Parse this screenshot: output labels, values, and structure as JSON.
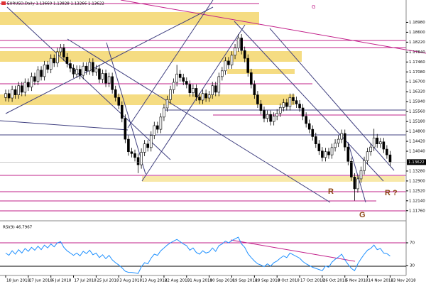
{
  "chart_data": {
    "type": "candlestick",
    "title": "EURUSD,Daily  1.13660 1.13828 1.13266 1.13622",
    "categories": [
      "18 Jun 2018",
      null,
      null,
      null,
      null,
      null,
      null,
      "27 Jun 2018",
      null,
      null,
      null,
      null,
      null,
      null,
      "6 Jul 2018",
      null,
      null,
      null,
      null,
      null,
      null,
      "17 Jul 2018",
      null,
      null,
      null,
      null,
      null,
      null,
      "25 Jul 2018",
      null,
      null,
      null,
      null,
      null,
      null,
      "3 Aug 2018",
      null,
      null,
      null,
      null,
      null,
      null,
      "13 Aug 2018",
      null,
      null,
      null,
      null,
      null,
      null,
      "22 Aug 2018",
      null,
      null,
      null,
      null,
      null,
      null,
      "31 Aug 2018",
      null,
      null,
      null,
      null,
      null,
      null,
      "10 Sep 2018",
      null,
      null,
      null,
      null,
      null,
      null,
      "19 Sep 2018",
      null,
      null,
      null,
      null,
      null,
      null,
      "28 Sep 2018",
      null,
      null,
      null,
      null,
      null,
      null,
      "8 Oct 2018",
      null,
      null,
      null,
      null,
      null,
      null,
      "17 Oct 2018",
      null,
      null,
      null,
      null,
      null,
      null,
      "26 Oct 2018",
      null,
      null,
      null,
      null,
      null,
      null,
      "5 Nov 2018",
      null,
      null,
      null,
      null,
      null,
      null,
      "14 Nov 2018",
      null,
      null,
      null,
      null,
      null,
      null,
      "23 Nov 2018"
    ],
    "open": [
      1.161,
      1.1625,
      1.1608,
      1.164,
      1.162,
      1.1655,
      1.163,
      1.1668,
      1.165,
      1.169,
      1.1672,
      1.1715,
      1.169,
      1.1735,
      1.1718,
      1.176,
      1.1742,
      1.1785,
      1.18,
      1.1765,
      1.174,
      1.1722,
      1.17,
      1.1718,
      1.1695,
      1.173,
      1.1712,
      1.1745,
      1.1708,
      1.172,
      1.168,
      1.1702,
      1.1665,
      1.169,
      1.164,
      1.161,
      1.158,
      1.153,
      1.145,
      1.1402,
      1.1395,
      1.138,
      1.1352,
      1.14,
      1.1432,
      1.1418,
      1.1465,
      1.1502,
      1.1488,
      1.1535,
      1.157,
      1.1602,
      1.164,
      1.1668,
      1.17,
      1.1686,
      1.1672,
      1.166,
      1.1628,
      1.1645,
      1.1612,
      1.16,
      1.1625,
      1.1608,
      1.162,
      1.1655,
      1.163,
      1.169,
      1.1712,
      1.175,
      1.1735,
      1.1772,
      1.18,
      1.1838,
      1.179,
      1.176,
      1.1705,
      1.166,
      1.162,
      1.1585,
      1.156,
      1.153,
      1.1545,
      1.1518,
      1.1538,
      1.155,
      1.1572,
      1.159,
      1.1575,
      1.161,
      1.1598,
      1.1585,
      1.157,
      1.1538,
      1.151,
      1.1488,
      1.146,
      1.1432,
      1.1405,
      1.138,
      1.1402,
      1.139,
      1.1418,
      1.1435,
      1.145,
      1.1472,
      1.142,
      1.1365,
      1.1305,
      1.126,
      1.1298,
      1.133,
      1.1368,
      1.1402,
      1.142,
      1.1455,
      1.1432,
      1.144,
      1.1412,
      1.139
    ],
    "high": [
      1.164,
      1.164,
      1.1655,
      1.1655,
      1.167,
      1.167,
      1.1683,
      1.1683,
      1.1705,
      1.1705,
      1.173,
      1.173,
      1.175,
      1.175,
      1.1775,
      1.1775,
      1.18,
      1.1815,
      1.1815,
      1.178,
      1.1755,
      1.1737,
      1.1733,
      1.1733,
      1.1745,
      1.1745,
      1.176,
      1.176,
      1.1735,
      1.1735,
      1.1717,
      1.1717,
      1.1705,
      1.1705,
      1.1655,
      1.1625,
      1.1595,
      1.1545,
      1.1465,
      1.1417,
      1.141,
      1.1395,
      1.1415,
      1.1447,
      1.1447,
      1.148,
      1.1517,
      1.1517,
      1.155,
      1.1585,
      1.1617,
      1.1655,
      1.1683,
      1.1735,
      1.1715,
      1.1701,
      1.1687,
      1.1675,
      1.166,
      1.166,
      1.1627,
      1.164,
      1.164,
      1.1635,
      1.167,
      1.167,
      1.1705,
      1.1727,
      1.1765,
      1.1765,
      1.1787,
      1.1815,
      1.1853,
      1.1853,
      1.1805,
      1.1775,
      1.172,
      1.1675,
      1.1635,
      1.16,
      1.1575,
      1.156,
      1.156,
      1.1553,
      1.1565,
      1.1587,
      1.1605,
      1.1605,
      1.1625,
      1.1625,
      1.1613,
      1.16,
      1.1585,
      1.1553,
      1.1525,
      1.1503,
      1.1475,
      1.1447,
      1.142,
      1.1417,
      1.1417,
      1.1433,
      1.145,
      1.1465,
      1.1487,
      1.1487,
      1.1435,
      1.138,
      1.132,
      1.1313,
      1.1345,
      1.1383,
      1.1417,
      1.1435,
      1.149,
      1.147,
      1.1455,
      1.1455,
      1.1427,
      1.1405
    ],
    "low": [
      1.1595,
      1.1593,
      1.1593,
      1.1605,
      1.1605,
      1.1615,
      1.1615,
      1.1635,
      1.1635,
      1.1657,
      1.1657,
      1.1675,
      1.1675,
      1.1703,
      1.1703,
      1.1727,
      1.1727,
      1.177,
      1.175,
      1.1725,
      1.1707,
      1.1685,
      1.1685,
      1.168,
      1.168,
      1.1697,
      1.1697,
      1.1693,
      1.1693,
      1.1665,
      1.1665,
      1.165,
      1.165,
      1.1625,
      1.1595,
      1.1565,
      1.1515,
      1.1435,
      1.1387,
      1.138,
      1.1365,
      1.132,
      1.1337,
      1.1385,
      1.1403,
      1.1403,
      1.145,
      1.1473,
      1.1473,
      1.152,
      1.1555,
      1.1587,
      1.1625,
      1.1653,
      1.1671,
      1.1657,
      1.1645,
      1.1613,
      1.1613,
      1.1597,
      1.1585,
      1.1585,
      1.1593,
      1.1593,
      1.1605,
      1.1615,
      1.1615,
      1.1675,
      1.1697,
      1.172,
      1.172,
      1.1757,
      1.1785,
      1.1775,
      1.1745,
      1.169,
      1.1645,
      1.1605,
      1.157,
      1.1545,
      1.1515,
      1.1515,
      1.1503,
      1.1503,
      1.1523,
      1.1535,
      1.1557,
      1.156,
      1.156,
      1.1583,
      1.157,
      1.1555,
      1.1523,
      1.1495,
      1.1473,
      1.1445,
      1.1417,
      1.139,
      1.1365,
      1.1365,
      1.1375,
      1.1375,
      1.1403,
      1.142,
      1.1435,
      1.1405,
      1.135,
      1.129,
      1.1215,
      1.1245,
      1.1283,
      1.1315,
      1.1353,
      1.1387,
      1.1405,
      1.1417,
      1.1417,
      1.1397,
      1.1375,
      1.1347
    ],
    "close": [
      1.1625,
      1.1608,
      1.164,
      1.162,
      1.1655,
      1.163,
      1.1668,
      1.165,
      1.169,
      1.1672,
      1.1715,
      1.169,
      1.1735,
      1.1718,
      1.176,
      1.1742,
      1.1785,
      1.18,
      1.1765,
      1.174,
      1.1722,
      1.17,
      1.1718,
      1.1695,
      1.173,
      1.1712,
      1.1745,
      1.1708,
      1.172,
      1.168,
      1.1702,
      1.1665,
      1.169,
      1.164,
      1.161,
      1.158,
      1.153,
      1.145,
      1.1402,
      1.1395,
      1.138,
      1.1352,
      1.14,
      1.1432,
      1.1418,
      1.1465,
      1.1502,
      1.1488,
      1.1535,
      1.157,
      1.1602,
      1.164,
      1.1668,
      1.17,
      1.1686,
      1.1672,
      1.166,
      1.1628,
      1.1645,
      1.1612,
      1.16,
      1.1625,
      1.1608,
      1.162,
      1.1655,
      1.163,
      1.169,
      1.1712,
      1.175,
      1.1735,
      1.1772,
      1.18,
      1.1838,
      1.179,
      1.176,
      1.1705,
      1.166,
      1.162,
      1.1585,
      1.156,
      1.153,
      1.1545,
      1.1518,
      1.1538,
      1.155,
      1.1572,
      1.159,
      1.1575,
      1.161,
      1.1598,
      1.1585,
      1.157,
      1.1538,
      1.151,
      1.1488,
      1.146,
      1.1432,
      1.1405,
      1.138,
      1.1402,
      1.139,
      1.1418,
      1.1435,
      1.145,
      1.1472,
      1.142,
      1.1365,
      1.1305,
      1.126,
      1.1298,
      1.133,
      1.1368,
      1.1402,
      1.142,
      1.1455,
      1.1432,
      1.144,
      1.1412,
      1.139,
      1.1362
    ],
    "up_color": "#ffffff",
    "down_color": "#000000",
    "ylim": [
      1.114,
      1.197
    ],
    "yticks": [
      {
        "value": 1.1898,
        "label": "1.18980"
      },
      {
        "value": 1.186,
        "label": "1.18600"
      },
      {
        "value": 1.1822,
        "label": "1.18220"
      },
      {
        "value": 1.1784,
        "label": "1.17840"
      },
      {
        "value": 1.1746,
        "label": "1.17460"
      },
      {
        "value": 1.1708,
        "label": "1.17080"
      },
      {
        "value": 1.167,
        "label": "1.16700"
      },
      {
        "value": 1.1632,
        "label": "1.16320"
      },
      {
        "value": 1.1594,
        "label": "1.15940"
      },
      {
        "value": 1.1556,
        "label": "1.15560"
      },
      {
        "value": 1.1518,
        "label": "1.15180"
      },
      {
        "value": 1.148,
        "label": "1.14800"
      },
      {
        "value": 1.1442,
        "label": "1.14420"
      },
      {
        "value": 1.1404,
        "label": "1.14040"
      },
      {
        "value": 1.1328,
        "label": "1.13280"
      },
      {
        "value": 1.129,
        "label": "1.12900"
      },
      {
        "value": 1.1252,
        "label": "1.12520"
      },
      {
        "value": 1.1214,
        "label": "1.12140"
      },
      {
        "value": 1.1176,
        "label": "1.11760"
      }
    ],
    "last_price": 1.13622,
    "annotations": [
      "R",
      "R ?",
      "G",
      "G"
    ],
    "indicator": {
      "label": "RSI(9) 46.7967",
      "color": "#1e90ff",
      "ylim": [
        15,
        100
      ],
      "yticks": [
        70,
        30
      ],
      "values": [
        52,
        48,
        56,
        50,
        58,
        52,
        60,
        55,
        62,
        57,
        64,
        58,
        66,
        61,
        68,
        63,
        70,
        72,
        62,
        56,
        52,
        48,
        52,
        47,
        55,
        51,
        57,
        49,
        52,
        44,
        49,
        42,
        48,
        40,
        35,
        31,
        26,
        20,
        18,
        18,
        17,
        16,
        28,
        35,
        33,
        43,
        50,
        48,
        56,
        61,
        66,
        70,
        73,
        76,
        72,
        68,
        65,
        57,
        61,
        53,
        50,
        56,
        52,
        54,
        61,
        55,
        65,
        68,
        73,
        70,
        74,
        77,
        80,
        68,
        62,
        51,
        44,
        38,
        33,
        31,
        28,
        33,
        29,
        35,
        38,
        43,
        47,
        44,
        52,
        49,
        46,
        43,
        37,
        33,
        30,
        27,
        25,
        23,
        21,
        29,
        27,
        36,
        41,
        45,
        50,
        40,
        32,
        25,
        21,
        33,
        42,
        50,
        57,
        60,
        66,
        58,
        60,
        52,
        51,
        46.7967
      ]
    }
  }
}
